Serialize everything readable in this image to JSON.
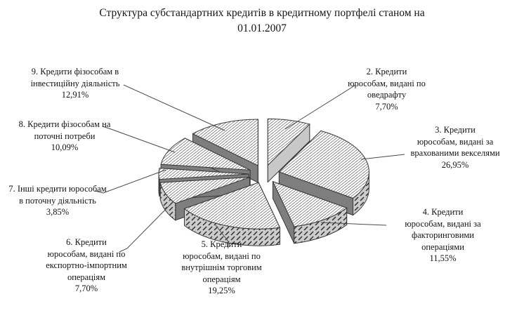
{
  "chart_data": {
    "type": "pie",
    "style": "3d-exploded-monochrome-hatched",
    "title": "Структура субстандартних кредитів в кредитному портфелі станом на\n01.01.2007",
    "unit": "percent",
    "legend_position": "callouts-with-leader-lines",
    "colors": {
      "background": "#ffffff",
      "outline": "#383838",
      "side_face": "#7e7e7e",
      "highlight_face": "#c8c8c8",
      "rim_base": "#cccccc",
      "leader_line": "#4a4a4a",
      "text": "#141414"
    },
    "slices": [
      {
        "id": 2,
        "label": "2. Кредити\nюрособам, видані по\nоведрафту",
        "value": 7.7,
        "pct_label": "7,70%"
      },
      {
        "id": 3,
        "label": "3. Кредити\nюрособам, видані за\nврахованими векселями",
        "value": 26.95,
        "pct_label": "26,95%"
      },
      {
        "id": 4,
        "label": "4. Кредити\nюрособам, видані за\nфакторинговими\nопераціями",
        "value": 11.55,
        "pct_label": "11,55%"
      },
      {
        "id": 5,
        "label": "5. Кредити\nюрособам, видані по\nвнутрішнім торговим\nопераціям",
        "value": 19.25,
        "pct_label": "19,25%"
      },
      {
        "id": 6,
        "label": "6. Кредити\nюрособам, видані по\nекспортно-імпортним\nопераціям",
        "value": 7.7,
        "pct_label": "7,70%"
      },
      {
        "id": 7,
        "label": "7. Інші кредити юрособам\nв поточну діяльність",
        "value": 3.85,
        "pct_label": "3,85%"
      },
      {
        "id": 8,
        "label": "8. Кредити фізособам на\nпоточні потреби",
        "value": 10.09,
        "pct_label": "10,09%"
      },
      {
        "id": 9,
        "label": "9. Кредити фізособам в\nінвестиційну діяльність",
        "value": 12.91,
        "pct_label": "12,91%"
      }
    ]
  }
}
